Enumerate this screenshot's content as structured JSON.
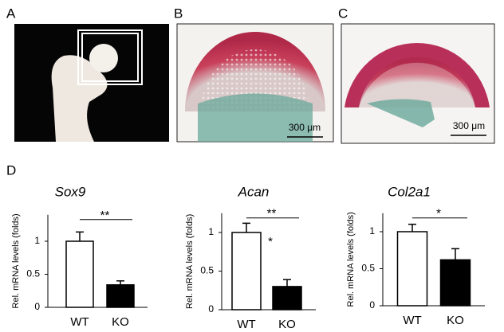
{
  "panels": {
    "A": {
      "label": "A"
    },
    "B": {
      "label": "B",
      "scale_bar": "300 μm"
    },
    "C": {
      "label": "C",
      "scale_bar": "300 μm"
    },
    "D": {
      "label": "D"
    }
  },
  "chart_data": [
    {
      "type": "bar",
      "title": "Sox9",
      "ylabel": "Rel. mRNA levels (folds)",
      "categories": [
        "WT",
        "KO"
      ],
      "values": [
        1.0,
        0.34
      ],
      "errors": [
        0.14,
        0.06
      ],
      "colors": [
        "#ffffff",
        "#000000"
      ],
      "ylim": [
        0,
        1.4
      ],
      "yticks": [
        0,
        0.5,
        1
      ],
      "significance": "**"
    },
    {
      "type": "bar",
      "title": "Acan",
      "ylabel": "Rel. mRNA levels (folds)",
      "categories": [
        "WT",
        "KO"
      ],
      "values": [
        1.0,
        0.3
      ],
      "errors": [
        0.12,
        0.09
      ],
      "colors": [
        "#ffffff",
        "#000000"
      ],
      "ylim": [
        0,
        1.25
      ],
      "yticks": [
        0,
        0.5,
        1
      ],
      "significance": "**",
      "annotation": "*"
    },
    {
      "type": "bar",
      "title": "Col2a1",
      "ylabel": "Rel. mRNA levels (folds)",
      "categories": [
        "WT",
        "KO"
      ],
      "values": [
        1.0,
        0.62
      ],
      "errors": [
        0.1,
        0.15
      ],
      "colors": [
        "#ffffff",
        "#000000"
      ],
      "ylim": [
        0,
        1.25
      ],
      "yticks": [
        0,
        0.5,
        1
      ],
      "significance": "*"
    }
  ]
}
